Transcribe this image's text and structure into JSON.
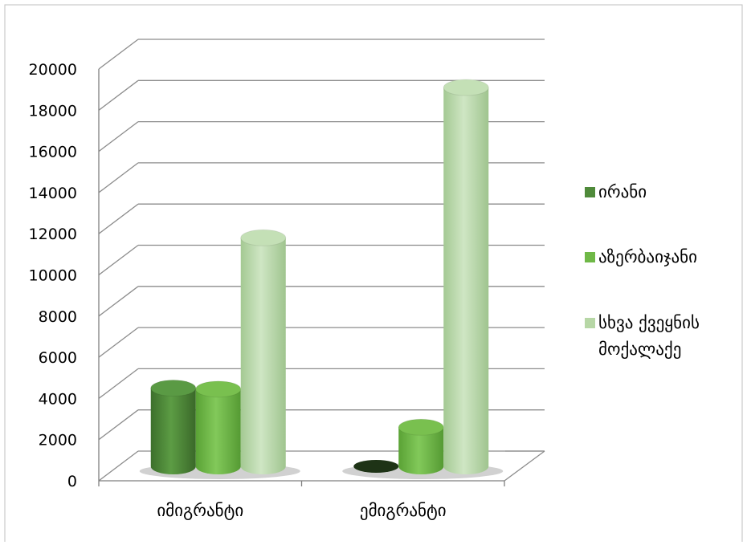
{
  "chart_data": {
    "type": "bar",
    "style": "3d-cylinder",
    "categories": [
      "იმიგრანტი",
      "ემიგრანტი"
    ],
    "series": [
      {
        "name": "ირანი",
        "values": [
          3800,
          0
        ],
        "color": "#4f8a3a"
      },
      {
        "name": "აზერბაიჯანი",
        "values": [
          3750,
          1900
        ],
        "color": "#6fb847"
      },
      {
        "name": "სხვა ქვეყნის მოქალაქე",
        "values": [
          11100,
          18400
        ],
        "color": "#b7d7a6"
      }
    ],
    "ylim": [
      0,
      20000
    ],
    "yticks": [
      "0",
      "2000",
      "4000",
      "6000",
      "8000",
      "10000",
      "12000",
      "14000",
      "16000",
      "18000",
      "20000"
    ],
    "grid": true,
    "legend_position": "right"
  }
}
